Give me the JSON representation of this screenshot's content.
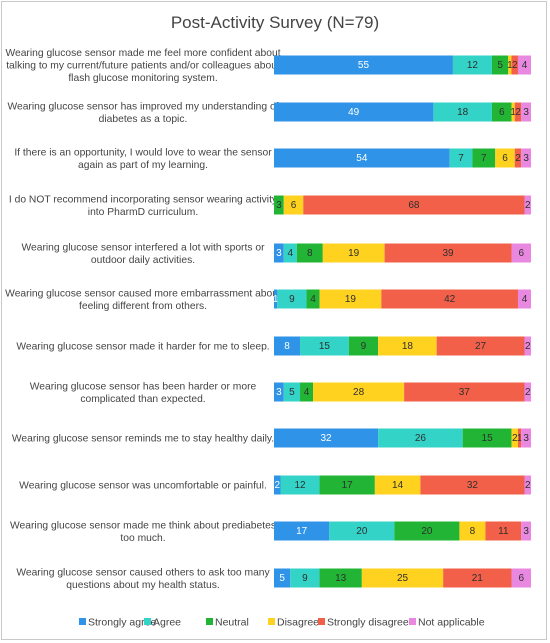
{
  "chart_data": {
    "type": "bar",
    "orientation": "horizontal",
    "stacked": true,
    "title": "Post-Activity Survey (N=79)",
    "xlabel": "",
    "ylabel": "",
    "xlim": [
      0,
      79
    ],
    "grid": false,
    "legend_position": "bottom",
    "categories": [
      "Wearing glucose sensor made me feel more confident about talking to my current/future patients and/or colleagues about flash glucose monitoring system.",
      "Wearing glucose sensor has improved my understanding of diabetes as a topic.",
      "If there is an opportunity, I would love to wear the sensor again as part of my learning.",
      "I do NOT recommend incorporating sensor wearing activity into PharmD curriculum.",
      "Wearing glucose sensor interfered a lot with sports or outdoor daily activities.",
      "Wearing glucose sensor caused more embarrassment about feeling different from others.",
      "Wearing glucose sensor made it harder for me to sleep.",
      "Wearing glucose sensor has been harder or more complicated than expected.",
      "Wearing glucose sensor reminds me to stay healthy daily.",
      "Wearing glucose sensor was uncomfortable or painful.",
      "Wearing glucose sensor made me think about prediabetes too much.",
      "Wearing glucose sensor caused others to ask too many questions about my health status."
    ],
    "category_lines": [
      [
        "Wearing glucose sensor made me feel more confident about",
        "talking to my current/future patients and/or colleagues about",
        "flash glucose monitoring system."
      ],
      [
        "Wearing glucose sensor has improved my understanding of",
        "diabetes as a topic."
      ],
      [
        "If there is an opportunity, I would love to wear the sensor",
        "again as part of my learning."
      ],
      [
        "I do NOT recommend incorporating sensor wearing activity",
        "into PharmD curriculum."
      ],
      [
        "Wearing glucose sensor interfered a lot with sports or",
        "outdoor daily activities."
      ],
      [
        "Wearing glucose sensor caused more embarrassment about",
        "feeling different from others."
      ],
      [
        "Wearing glucose sensor made it harder for me to sleep."
      ],
      [
        "Wearing glucose sensor has been harder or more",
        "complicated than expected."
      ],
      [
        "Wearing glucose sensor reminds me to stay healthy daily."
      ],
      [
        "Wearing glucose sensor was uncomfortable or painful."
      ],
      [
        "Wearing glucose sensor made me think about prediabetes",
        "too much."
      ],
      [
        "Wearing glucose sensor caused others to ask too many",
        "questions about my health status."
      ]
    ],
    "series": [
      {
        "name": "Strongly agree",
        "color": "#2f93e8",
        "values": [
          55,
          49,
          54,
          0,
          3,
          1,
          8,
          3,
          32,
          2,
          17,
          5
        ]
      },
      {
        "name": "Agree",
        "color": "#34d3c8",
        "values": [
          12,
          18,
          7,
          0,
          4,
          9,
          15,
          5,
          26,
          12,
          20,
          9
        ]
      },
      {
        "name": "Neutral",
        "color": "#22b535",
        "values": [
          5,
          6,
          7,
          3,
          8,
          4,
          9,
          4,
          15,
          17,
          20,
          13
        ]
      },
      {
        "name": "Disagree",
        "color": "#ffd21f",
        "values": [
          1,
          1,
          6,
          6,
          19,
          19,
          18,
          28,
          2,
          14,
          8,
          25
        ]
      },
      {
        "name": "Strongly disagree",
        "color": "#f2604a",
        "values": [
          2,
          2,
          2,
          68,
          39,
          42,
          27,
          37,
          1,
          32,
          11,
          21
        ]
      },
      {
        "name": "Not applicable",
        "color": "#e888e0",
        "values": [
          4,
          3,
          3,
          2,
          6,
          4,
          2,
          2,
          3,
          2,
          3,
          6
        ]
      }
    ],
    "segment_labels": [
      [
        "55",
        "12",
        "5",
        "1",
        "2",
        "4"
      ],
      [
        "49",
        "18",
        "6",
        "1",
        "2",
        "3"
      ],
      [
        "54",
        "7",
        "7",
        "6",
        "2",
        "3"
      ],
      [
        "",
        "",
        "3",
        "6",
        "68",
        "2"
      ],
      [
        "3",
        "4",
        "8",
        "19",
        "39",
        "6"
      ],
      [
        "1",
        "9",
        "4",
        "19",
        "42",
        "4"
      ],
      [
        "8",
        "15",
        "9",
        "18",
        "27",
        "2"
      ],
      [
        "3",
        "5",
        "4",
        "28",
        "37",
        "2"
      ],
      [
        "32",
        "26",
        "15",
        "2",
        "1",
        "3"
      ],
      [
        "2",
        "12",
        "17",
        "14",
        "32",
        "2"
      ],
      [
        "17",
        "20",
        "20",
        "8",
        "11",
        "3"
      ],
      [
        "5",
        "9",
        "13",
        "25",
        "21",
        "6"
      ]
    ]
  }
}
